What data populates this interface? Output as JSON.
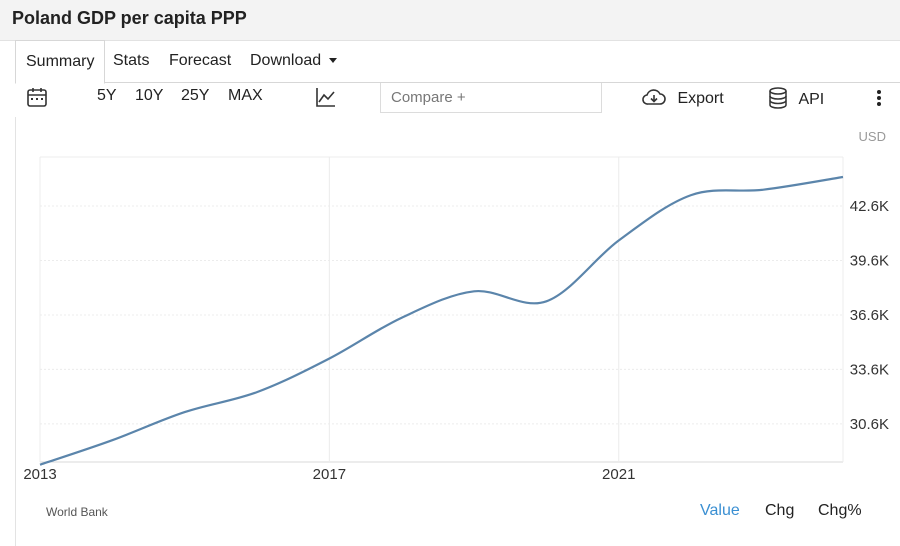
{
  "header": {
    "title": "Poland GDP per capita PPP"
  },
  "tabs": [
    {
      "label": "Summary",
      "active": true
    },
    {
      "label": "Stats"
    },
    {
      "label": "Forecast"
    },
    {
      "label": "Download"
    }
  ],
  "toolbar": {
    "ranges": [
      "5Y",
      "10Y",
      "25Y",
      "MAX"
    ],
    "compare_placeholder": "Compare +",
    "export_label": "Export",
    "api_label": "API"
  },
  "footer": {
    "source": "World Bank",
    "modes": [
      "Value",
      "Chg",
      "Chg%"
    ],
    "active_mode": "Value"
  },
  "colors": {
    "line": "#5b85ab",
    "grid": "#ececec",
    "active": "#3a8fd2"
  },
  "chart_data": {
    "type": "line",
    "unit": "USD",
    "x_ticks": [
      "2013",
      "2017",
      "2021"
    ],
    "y_ticks": [
      "30.6K",
      "33.6K",
      "36.6K",
      "39.6K",
      "42.6K"
    ],
    "y_tick_values": [
      30600,
      33600,
      36600,
      39600,
      42600
    ],
    "ylim": [
      28500,
      45300
    ],
    "xlim": [
      2013,
      2024.1
    ],
    "series": [
      {
        "x": [
          2013,
          2014,
          2015,
          2016,
          2017,
          2018,
          2019,
          2020,
          2021,
          2022,
          2023,
          2024.1
        ],
        "values": [
          28350,
          29700,
          31250,
          32350,
          34200,
          36450,
          37900,
          37350,
          40700,
          43200,
          43500,
          44200
        ]
      }
    ],
    "grid": true
  }
}
